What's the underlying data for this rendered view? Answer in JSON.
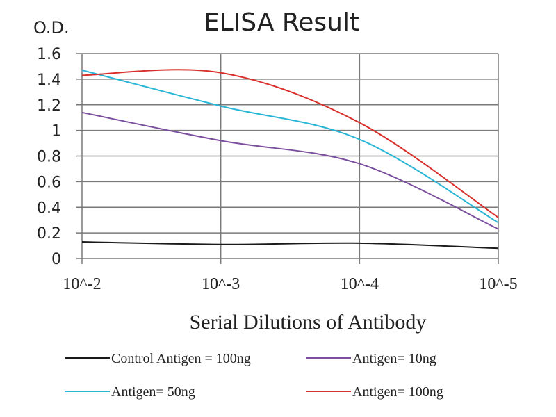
{
  "chart_data": {
    "type": "line",
    "title": "ELISA Result",
    "ylabel": "O.D.",
    "xlabel": "Serial Dilutions of Antibody",
    "categories": [
      "10^-2",
      "10^-3",
      "10^-4",
      "10^-5"
    ],
    "ylim": [
      0,
      1.6
    ],
    "yticks": [
      "0",
      "0.2",
      "0.4",
      "0.6",
      "0.8",
      "1",
      "1.2",
      "1.4",
      "1.6"
    ],
    "grid": true,
    "legend_placement": "bottom",
    "series": [
      {
        "name": "Control Antigen = 100ng",
        "color": "#1a1a1a",
        "values": [
          0.13,
          0.11,
          0.12,
          0.08
        ]
      },
      {
        "name": "Antigen= 10ng",
        "color": "#7b4f9e",
        "values": [
          1.14,
          0.92,
          0.74,
          0.23
        ]
      },
      {
        "name": "Antigen= 50ng",
        "color": "#2ab6d6",
        "values": [
          1.47,
          1.19,
          0.93,
          0.28
        ]
      },
      {
        "name": "Antigen= 100ng",
        "color": "#d9302c",
        "values": [
          1.43,
          1.45,
          1.06,
          0.32
        ]
      }
    ]
  }
}
